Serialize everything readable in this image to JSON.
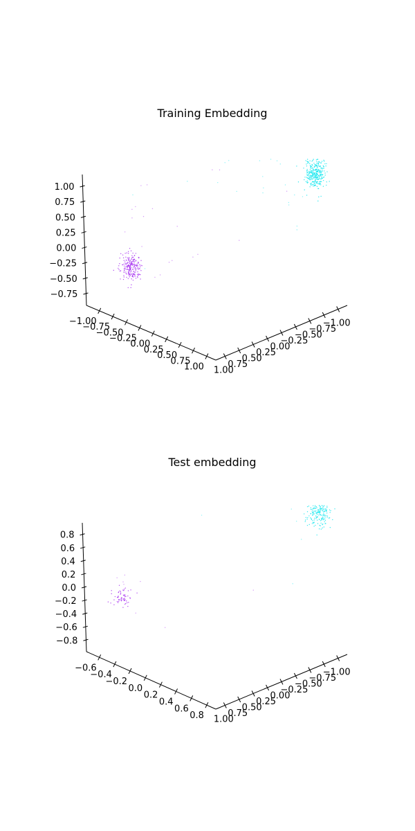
{
  "colors": {
    "class_a": "#00e5ee",
    "class_b": "#a020f0"
  },
  "chart_data": [
    {
      "type": "scatter",
      "projection": "3d",
      "title": "Training Embedding",
      "xlabel": "",
      "ylabel": "",
      "zlabel": "",
      "xlim": [
        -1.0,
        1.0
      ],
      "ylim": [
        -1.0,
        1.0
      ],
      "zlim": [
        -0.85,
        1.15
      ],
      "x_ticks": [
        "1.00",
        "0.75",
        "0.50",
        "0.25",
        "0.00",
        "−0.25",
        "−0.50",
        "−0.75",
        "−1.00"
      ],
      "y_ticks": [
        "−1.00",
        "−0.75",
        "−0.50",
        "−0.25",
        "0.00",
        "0.25",
        "0.50",
        "0.75",
        "1.00"
      ],
      "z_ticks": [
        "1.00",
        "0.75",
        "0.50",
        "0.25",
        "0.00",
        "−0.25",
        "−0.50",
        "−0.75"
      ],
      "grid": false,
      "series": [
        {
          "color": "#00e5ee",
          "clusters": [
            {
              "center": [
                0.95,
                0.6,
                0.45
              ],
              "spread": [
                0.06,
                0.05,
                0.12
              ],
              "count": 320
            },
            {
              "center": [
                0.2,
                0.5,
                0.6
              ],
              "spread": [
                0.5,
                0.45,
                0.45
              ],
              "count": 28
            }
          ]
        },
        {
          "color": "#a020f0",
          "clusters": [
            {
              "center": [
                -0.95,
                -0.35,
                -0.45
              ],
              "spread": [
                0.05,
                0.06,
                0.1
              ],
              "count": 220
            },
            {
              "center": [
                -0.4,
                -0.2,
                -0.2
              ],
              "spread": [
                0.5,
                0.45,
                0.45
              ],
              "count": 22
            }
          ]
        }
      ]
    },
    {
      "type": "scatter",
      "projection": "3d",
      "title": "Test embedding",
      "xlabel": "",
      "ylabel": "",
      "zlabel": "",
      "xlim": [
        -1.0,
        1.0
      ],
      "ylim": [
        -0.65,
        0.85
      ],
      "zlim": [
        -0.9,
        0.9
      ],
      "x_ticks": [
        "1.00",
        "0.75",
        "0.50",
        "0.25",
        "0.00",
        "−0.25",
        "−0.50",
        "−0.75",
        "−1.00"
      ],
      "y_ticks": [
        "−0.6",
        "−0.4",
        "−0.2",
        "0.0",
        "0.2",
        "0.4",
        "0.6",
        "0.8"
      ],
      "z_ticks": [
        "0.8",
        "0.6",
        "0.4",
        "0.2",
        "0.0",
        "−0.2",
        "−0.4",
        "−0.6",
        "−0.8"
      ],
      "grid": false,
      "series": [
        {
          "color": "#00e5ee",
          "clusters": [
            {
              "center": [
                0.95,
                0.6,
                0.45
              ],
              "spread": [
                0.06,
                0.05,
                0.1
              ],
              "count": 200
            },
            {
              "center": [
                0.3,
                0.5,
                0.4
              ],
              "spread": [
                0.45,
                0.4,
                0.4
              ],
              "count": 10
            }
          ]
        },
        {
          "color": "#a020f0",
          "clusters": [
            {
              "center": [
                -0.9,
                -0.3,
                -0.35
              ],
              "spread": [
                0.05,
                0.05,
                0.06
              ],
              "count": 60
            },
            {
              "center": [
                -0.6,
                -0.2,
                -0.3
              ],
              "spread": [
                0.3,
                0.3,
                0.3
              ],
              "count": 8
            }
          ]
        }
      ]
    }
  ]
}
